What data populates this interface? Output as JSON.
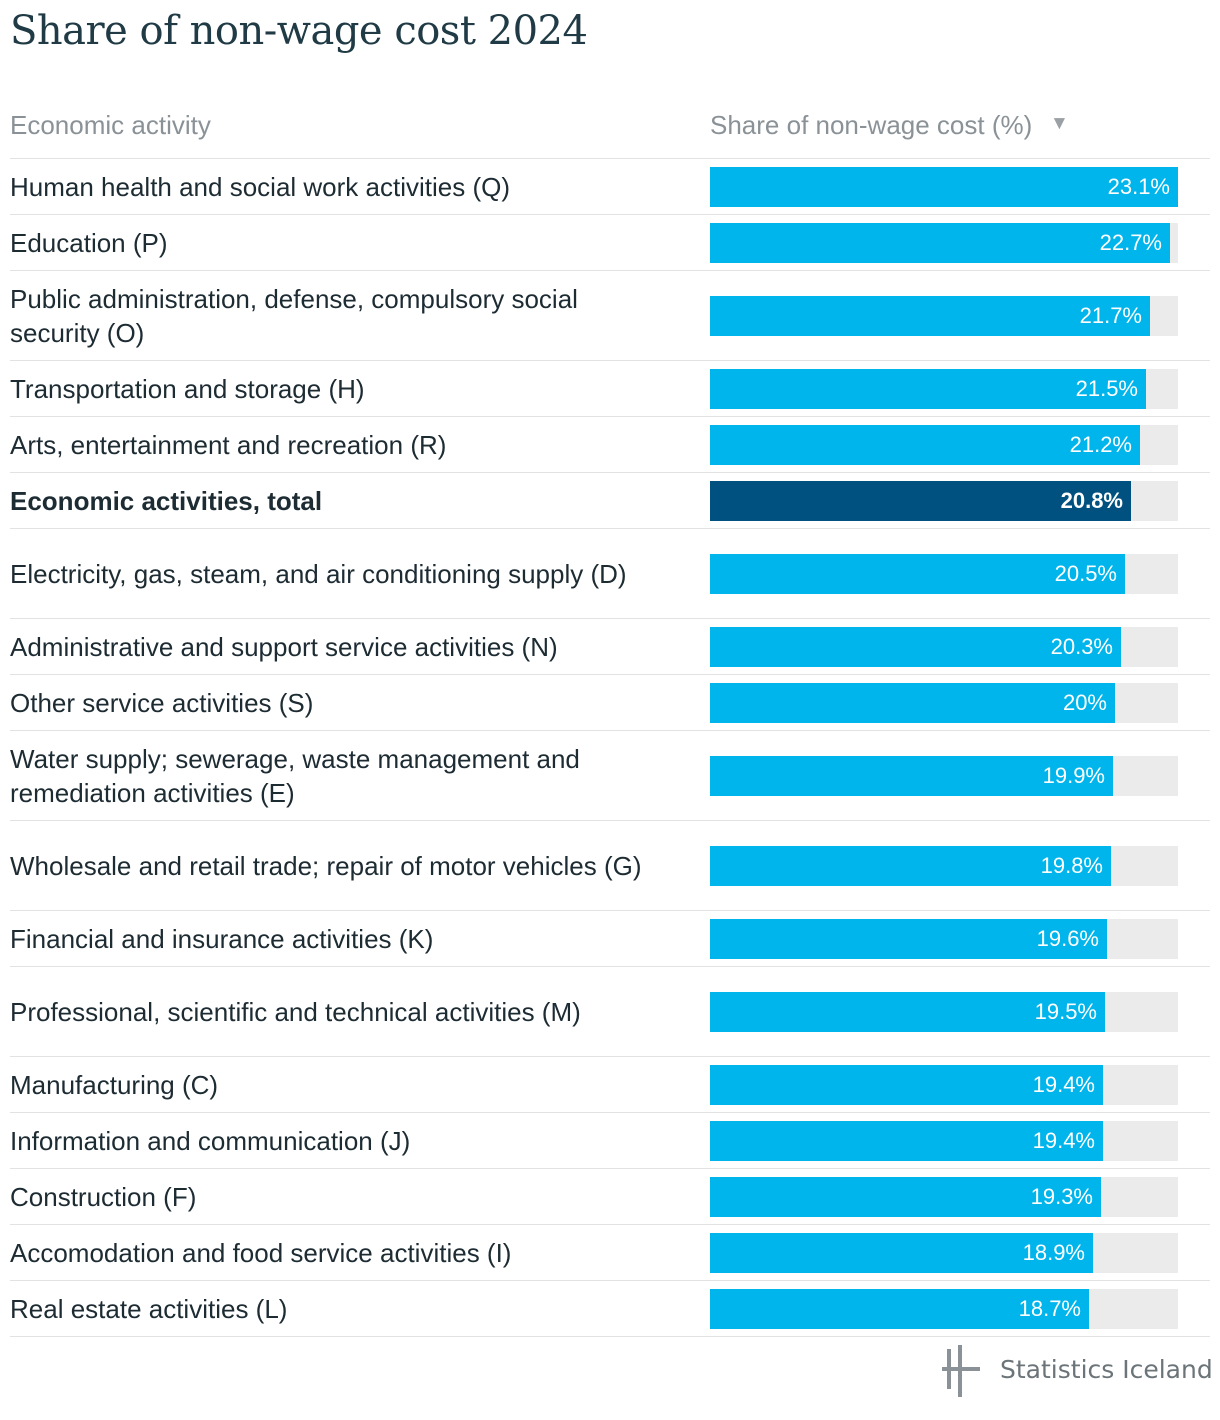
{
  "title": "Share of non-wage cost 2024",
  "header": {
    "col1": "Economic activity",
    "col2": "Share of non-wage cost (%)",
    "sort_icon": "▼"
  },
  "colors": {
    "bar": "#00b5eb",
    "bar_highlight": "#00517f",
    "track": "#ebebeb"
  },
  "chart_data": {
    "type": "bar",
    "orientation": "horizontal",
    "max": 23.1,
    "rows": [
      {
        "label": "Human health and social work activities (Q)",
        "value": 23.1,
        "display": "23.1%"
      },
      {
        "label": "Education (P)",
        "value": 22.7,
        "display": "22.7%"
      },
      {
        "label": "Public administration, defense, compulsory social security (O)",
        "value": 21.7,
        "display": "21.7%"
      },
      {
        "label": "Transportation and storage (H)",
        "value": 21.5,
        "display": "21.5%"
      },
      {
        "label": "Arts, entertainment and recreation (R)",
        "value": 21.2,
        "display": "21.2%"
      },
      {
        "label": "Economic activities, total",
        "value": 20.8,
        "display": "20.8%",
        "highlight": true
      },
      {
        "label": "Electricity, gas, steam, and air conditioning supply (D)",
        "value": 20.5,
        "display": "20.5%"
      },
      {
        "label": "Administrative and support service activities (N)",
        "value": 20.3,
        "display": "20.3%"
      },
      {
        "label": "Other service activities (S)",
        "value": 20,
        "display": "20%"
      },
      {
        "label": "Water supply; sewerage, waste management and remediation activities (E)",
        "value": 19.9,
        "display": "19.9%"
      },
      {
        "label": "Wholesale and retail trade; repair of motor vehicles (G)",
        "value": 19.8,
        "display": "19.8%"
      },
      {
        "label": "Financial and insurance activities (K)",
        "value": 19.6,
        "display": "19.6%"
      },
      {
        "label": "Professional, scientific and technical activities (M)",
        "value": 19.5,
        "display": "19.5%"
      },
      {
        "label": "Manufacturing (C)",
        "value": 19.4,
        "display": "19.4%"
      },
      {
        "label": "Information and communication (J)",
        "value": 19.4,
        "display": "19.4%"
      },
      {
        "label": "Construction (F)",
        "value": 19.3,
        "display": "19.3%"
      },
      {
        "label": "Accomodation and food service activities (I)",
        "value": 18.9,
        "display": "18.9%"
      },
      {
        "label": "Real estate activities (L)",
        "value": 18.7,
        "display": "18.7%"
      }
    ]
  },
  "footer": {
    "logo_text": "Statistics Iceland",
    "logo_icon": "statistics-iceland-logo-icon"
  }
}
